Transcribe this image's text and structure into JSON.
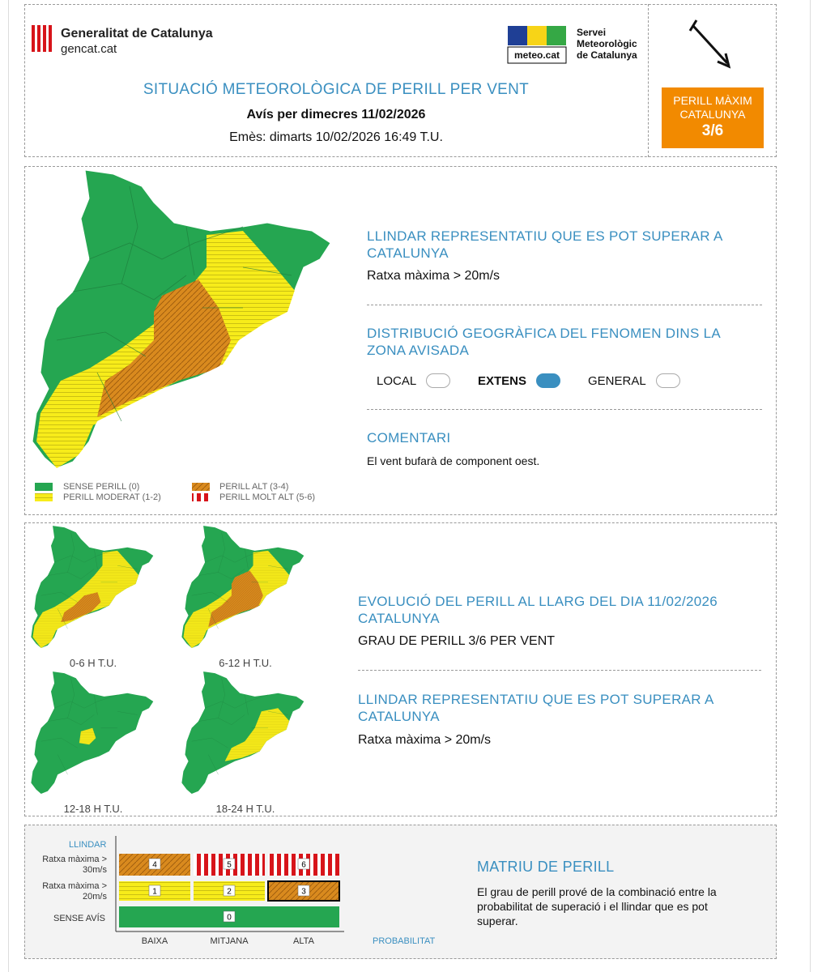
{
  "header": {
    "org_name": "Generalitat de Catalunya",
    "org_site": "gencat.cat",
    "meteo_logo": "meteo.cat",
    "meteo_name": [
      "Servei",
      "Meteorològic",
      "de Catalunya"
    ],
    "title": "SITUACIÓ METEOROLÒGICA DE PERILL PER VENT",
    "subtitle": "Avís per dimecres 11/02/2026",
    "issued": "Emès: dimarts 10/02/2026 16:49 T.U.",
    "max_danger": {
      "label_1": "PERILL MÀXIM",
      "label_2": "CATALUNYA",
      "level": "3/6"
    }
  },
  "map_section": {
    "legend": [
      "SENSE PERILL (0)",
      "PERILL MODERAT (1-2)",
      "PERILL ALT (3-4)",
      "PERILL MOLT ALT (5-6)"
    ],
    "threshold_title": "LLINDAR REPRESENTATIU QUE ES POT SUPERAR A CATALUNYA",
    "threshold_text": "Ratxa màxima > 20m/s",
    "distribution_title": "DISTRIBUCIÓ GEOGRÀFICA DEL FENOMEN DINS LA ZONA AVISADA",
    "distribution_options": [
      "LOCAL",
      "EXTENS",
      "GENERAL"
    ],
    "selected": 1,
    "comment_title": "COMENTARI",
    "comment_text": "El vent bufarà de component oest."
  },
  "evolution": {
    "periods": [
      "0-6 H T.U.",
      "6-12 H T.U.",
      "12-18 H T.U.",
      "18-24 H T.U."
    ],
    "title": "EVOLUCIÓ DEL PERILL AL LLARG DEL DIA 11/02/2026 CATALUNYA",
    "level_text": "GRAU DE PERILL 3/6 PER VENT",
    "threshold_title": "LLINDAR REPRESENTATIU QUE ES POT SUPERAR A CATALUNYA",
    "threshold_text": "Ratxa màxima > 20m/s"
  },
  "matrix": {
    "axis_title": "LLINDAR",
    "rows": [
      "Ratxa màxima > 30m/s",
      "Ratxa màxima > 20m/s",
      "SENSE AVÍS"
    ],
    "columns": [
      "BAIXA",
      "MITJANA",
      "ALTA"
    ],
    "x_title": "PROBABILITAT",
    "cells": [
      [
        "4",
        "5",
        "6"
      ],
      [
        "1",
        "2",
        "3"
      ],
      [
        "0"
      ]
    ],
    "title": "MATRIU DE PERILL",
    "text": "El grau de perill prové de la combinació entre la probabilitat de superació i el llindar que es pot superar."
  }
}
